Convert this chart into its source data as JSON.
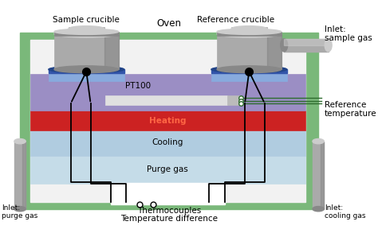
{
  "oven_green": "#7ab87a",
  "oven_inner": "#f2f2f2",
  "purge_color": "#c5dce8",
  "cooling_color": "#b0cce0",
  "heating_color": "#cc2222",
  "pt100_color": "#9b8ec4",
  "pt100_dark": "#7a6aaa",
  "crucible_base_light": "#88aadd",
  "crucible_base_dark": "#3355aa",
  "crucible_gray1": "#aaaaaa",
  "crucible_gray2": "#888888",
  "crucible_gray3": "#cccccc",
  "crucible_gray_dark": "#666666",
  "pipe_light": "#cccccc",
  "pipe_mid": "#aaaaaa",
  "pipe_dark": "#888888",
  "line_color": "#1a1a1a",
  "ref_line_color": "#2d6b2d",
  "title_oven": "Oven",
  "label_sample": "Sample crucible",
  "label_reference": "Reference crucible",
  "label_pt100": "PT100",
  "label_heating": "Heating",
  "label_cooling": "Cooling",
  "label_purge": "Purge gas",
  "label_thermocouples": "Thermocouples",
  "label_temp_diff": "Temperature difference",
  "label_ref_temp": "Reference\ntemperature",
  "label_inlet_sample": "Inlet:\nsample gas",
  "label_inlet_purge": "Inlet:\npurge gas",
  "label_inlet_cooling": "Inlet:\ncooling gas"
}
